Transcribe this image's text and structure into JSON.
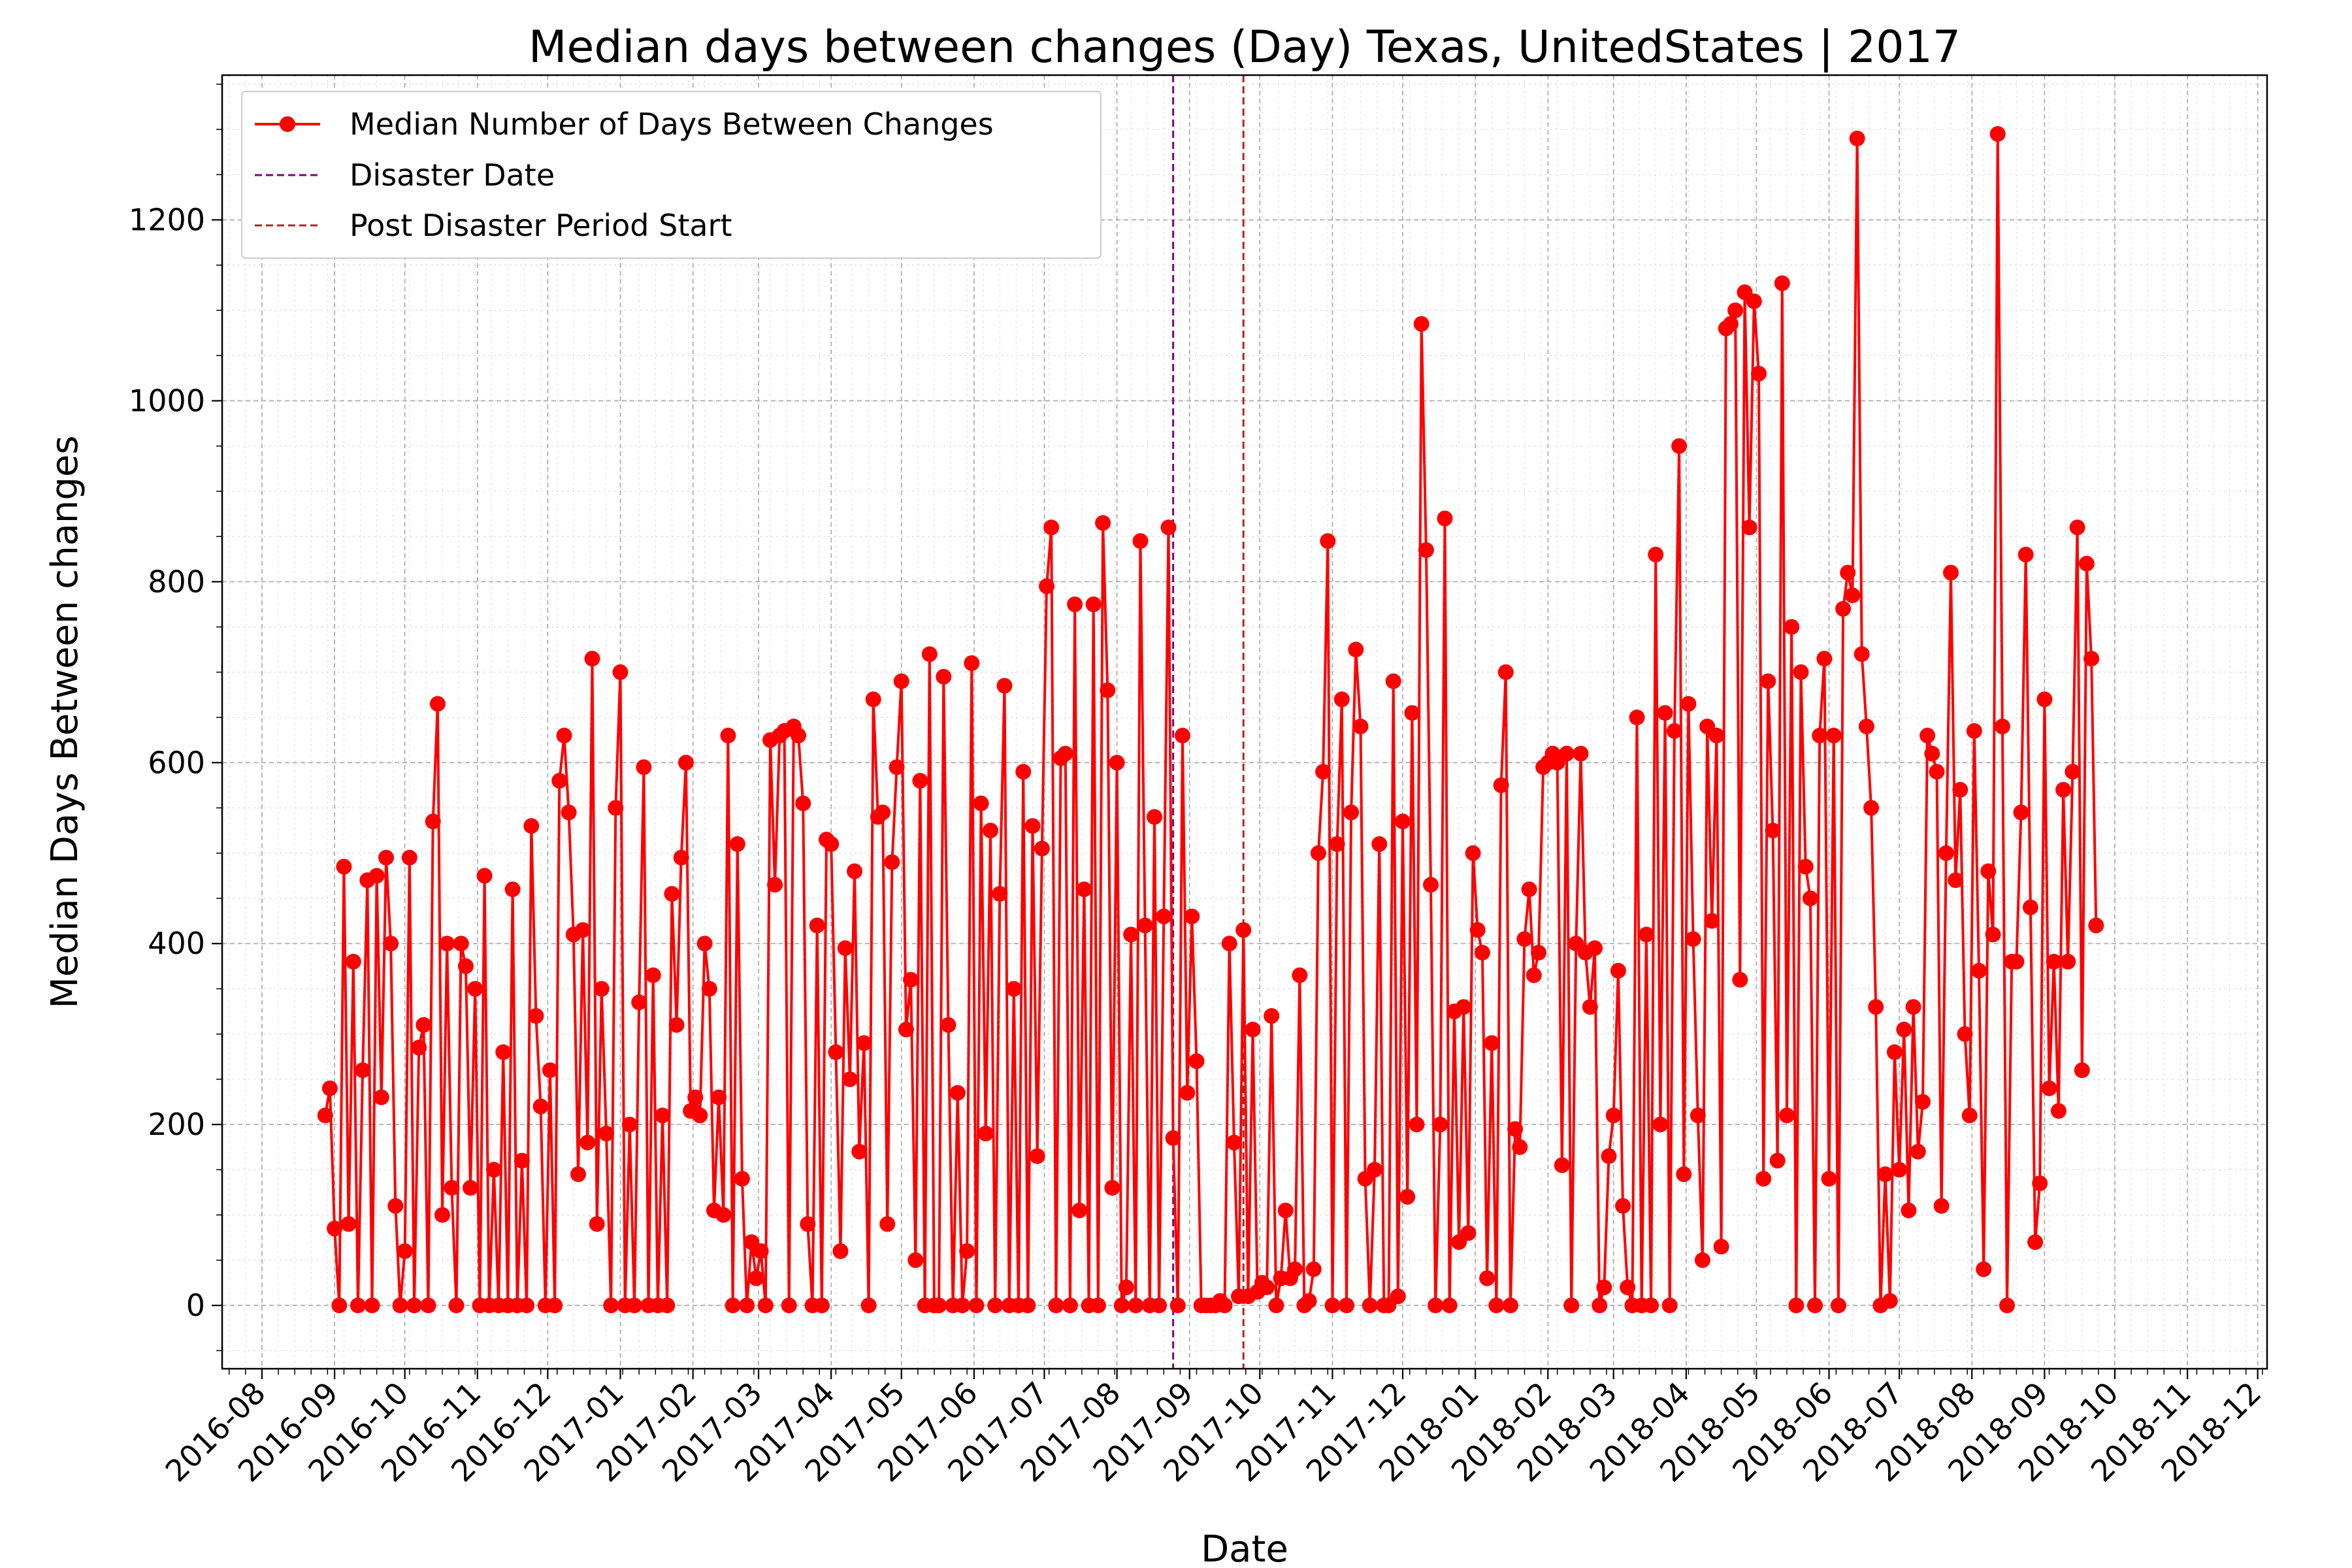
{
  "chart_data": {
    "type": "line",
    "title": "Median days between changes (Day) Texas, UnitedStates | 2017",
    "xlabel": "Date",
    "ylabel": "Median Days Between changes",
    "x_range": [
      "2016-07-15",
      "2018-12-05"
    ],
    "ylim": [
      -70,
      1360
    ],
    "y_ticks": [
      0,
      200,
      400,
      600,
      800,
      1000,
      1200
    ],
    "x_ticks": [
      "2016-08",
      "2016-09",
      "2016-10",
      "2016-11",
      "2016-12",
      "2017-01",
      "2017-02",
      "2017-03",
      "2017-04",
      "2017-05",
      "2017-06",
      "2017-07",
      "2017-08",
      "2017-09",
      "2017-10",
      "2017-11",
      "2017-12",
      "2018-01",
      "2018-02",
      "2018-03",
      "2018-04",
      "2018-05",
      "2018-06",
      "2018-07",
      "2018-08",
      "2018-09",
      "2018-10",
      "2018-11",
      "2018-12"
    ],
    "grid": true,
    "legend_position": "top-left",
    "series": [
      {
        "name": "Median Number of Days Between Changes",
        "color": "#ff0000",
        "marker": "circle",
        "start_date": "2016-08-28",
        "step_days": 2,
        "values": [
          210,
          240,
          85,
          0,
          485,
          90,
          380,
          0,
          260,
          470,
          0,
          475,
          230,
          495,
          400,
          110,
          0,
          60,
          495,
          0,
          285,
          310,
          0,
          535,
          665,
          100,
          400,
          130,
          0,
          400,
          375,
          130,
          350,
          0,
          475,
          0,
          150,
          0,
          280,
          0,
          460,
          0,
          160,
          0,
          530,
          320,
          220,
          0,
          260,
          0,
          580,
          630,
          545,
          410,
          145,
          415,
          180,
          715,
          90,
          350,
          190,
          0,
          550,
          700,
          0,
          200,
          0,
          335,
          595,
          0,
          365,
          0,
          210,
          0,
          455,
          310,
          495,
          600,
          215,
          230,
          210,
          400,
          350,
          105,
          230,
          100,
          630,
          0,
          510,
          140,
          0,
          70,
          30,
          60,
          0,
          625,
          465,
          630,
          635,
          0,
          640,
          630,
          555,
          90,
          0,
          420,
          0,
          515,
          510,
          280,
          60,
          395,
          250,
          480,
          170,
          290,
          0,
          670,
          540,
          545,
          90,
          490,
          595,
          690,
          305,
          360,
          50,
          580,
          0,
          720,
          0,
          0,
          695,
          310,
          0,
          235,
          0,
          60,
          710,
          0,
          555,
          190,
          525,
          0,
          455,
          685,
          0,
          350,
          0,
          590,
          0,
          530,
          165,
          505,
          795,
          860,
          0,
          605,
          610,
          0,
          775,
          105,
          460,
          0,
          775,
          0,
          865,
          680,
          130,
          600,
          0,
          20,
          410,
          0,
          845,
          420,
          0,
          540,
          0,
          430,
          860,
          185,
          0,
          630,
          235,
          430,
          270,
          0,
          0,
          0,
          0,
          5,
          0,
          400,
          180,
          10,
          415,
          10,
          305,
          15,
          25,
          20,
          320,
          0,
          30,
          105,
          30,
          40,
          365,
          0,
          5,
          40,
          500,
          590,
          845,
          0,
          510,
          670,
          0,
          545,
          725,
          640,
          140,
          0,
          150,
          510,
          0,
          0,
          690,
          10,
          535,
          120,
          655,
          200,
          1085,
          835,
          465,
          0,
          200,
          870,
          0,
          325,
          70,
          330,
          80,
          500,
          415,
          390,
          30,
          290,
          0,
          575,
          700,
          0,
          195,
          175,
          405,
          460,
          365,
          390,
          595,
          600,
          610,
          600,
          155,
          610,
          0,
          400,
          610,
          390,
          330,
          395,
          0,
          20,
          165,
          210,
          370,
          110,
          20,
          0,
          650,
          0,
          410,
          0,
          830,
          200,
          655,
          0,
          635,
          950,
          145,
          665,
          405,
          210,
          50,
          640,
          425,
          630,
          65,
          1080,
          1085,
          1100,
          360,
          1120,
          860,
          1110,
          1030,
          140,
          690,
          525,
          160,
          1130,
          210,
          750,
          0,
          700,
          485,
          450,
          0,
          630,
          715,
          140,
          630,
          0,
          770,
          810,
          785,
          1290,
          720,
          640,
          550,
          330,
          0,
          145,
          5,
          280,
          150,
          305,
          105,
          330,
          170,
          225,
          630,
          610,
          590,
          110,
          500,
          810,
          470,
          570,
          300,
          210,
          635,
          370,
          40,
          480,
          410,
          1295,
          640,
          0,
          380,
          380,
          545,
          830,
          440,
          70,
          135,
          670,
          240,
          380,
          215,
          570,
          380,
          590,
          860,
          260,
          820,
          715,
          420
        ]
      }
    ],
    "markers": [
      {
        "name": "Disaster Date",
        "date": "2017-08-25",
        "color": "#800080"
      },
      {
        "name": "Post Disaster Period Start",
        "date": "2017-09-24",
        "color": "#b22222"
      }
    ]
  }
}
